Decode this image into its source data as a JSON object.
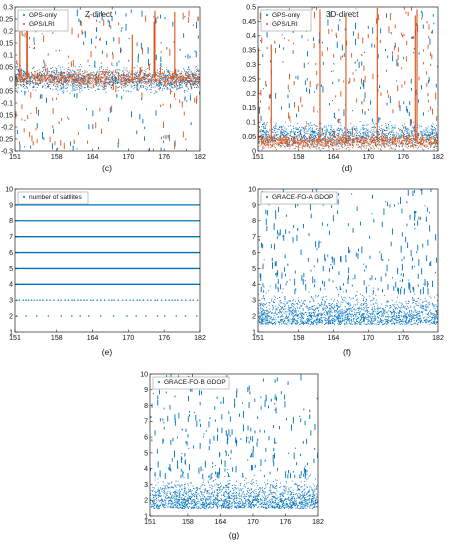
{
  "chart_data": [
    {
      "type": "scatter",
      "panel_label": "(c)",
      "annotation": "Z-direct",
      "xlim": [
        151,
        182
      ],
      "ylim": [
        -0.3,
        0.3
      ],
      "xticks": [
        "151",
        "158",
        "164",
        "170",
        "176",
        "182"
      ],
      "yticks": [
        "0.3",
        "0.25",
        "0.2",
        "0.15",
        "0.1",
        "0.05",
        "0",
        "-0.05",
        "-0.1",
        "-0.15",
        "-0.2",
        "-0.25",
        "-0.3"
      ],
      "legend": "top-left",
      "series": [
        {
          "name": "GPS-only",
          "color": "#0072BD",
          "approx_range": [
            -0.05,
            0.05
          ],
          "spikes_to": [
            -0.3,
            0.3
          ]
        },
        {
          "name": "GPS/LRI",
          "color": "#D95319",
          "approx_range": [
            -0.03,
            0.04
          ],
          "spikes_to": [
            -0.3,
            0.3
          ]
        }
      ]
    },
    {
      "type": "scatter",
      "panel_label": "(d)",
      "annotation": "3D-direct",
      "xlim": [
        151,
        182
      ],
      "ylim": [
        0,
        0.5
      ],
      "xticks": [
        "151",
        "158",
        "164",
        "170",
        "176",
        "182"
      ],
      "yticks": [
        "0.5",
        "0.45",
        "0.4",
        "0.35",
        "0.3",
        "0.25",
        "0.2",
        "0.15",
        "0.1",
        "0.05",
        "0"
      ],
      "legend": "top-left",
      "series": [
        {
          "name": "GPS-only",
          "color": "#0072BD",
          "approx_range": [
            0.01,
            0.1
          ],
          "spikes_to": 0.5
        },
        {
          "name": "GPS/LRI",
          "color": "#D95319",
          "approx_range": [
            0.01,
            0.06
          ],
          "spikes_to": 0.5
        }
      ]
    },
    {
      "type": "scatter",
      "panel_label": "(e)",
      "xlim": [
        151,
        182
      ],
      "ylim": [
        1,
        10
      ],
      "xticks": [
        "151",
        "158",
        "164",
        "170",
        "176",
        "182"
      ],
      "yticks": [
        "10",
        "9",
        "8",
        "7",
        "6",
        "5",
        "4",
        "3",
        "2",
        "1"
      ],
      "legend": "top-left",
      "series": [
        {
          "name": "number of satllites",
          "color": "#0072BD",
          "levels": [
            2,
            3,
            4,
            5,
            6,
            7,
            8,
            9
          ]
        }
      ]
    },
    {
      "type": "scatter",
      "panel_label": "(f)",
      "xlim": [
        151,
        182
      ],
      "ylim": [
        1,
        10
      ],
      "xticks": [
        "151",
        "158",
        "164",
        "170",
        "176",
        "182"
      ],
      "yticks": [
        "10",
        "9",
        "8",
        "7",
        "6",
        "5",
        "4",
        "3",
        "2",
        "1"
      ],
      "legend": "top-left",
      "series": [
        {
          "name": "GRACE-FO-A GDOP",
          "color": "#0072BD",
          "approx_range": [
            1.5,
            3.5
          ],
          "spikes_to": 10
        }
      ]
    },
    {
      "type": "scatter",
      "panel_label": "(g)",
      "xlim": [
        151,
        182
      ],
      "ylim": [
        1,
        10
      ],
      "xticks": [
        "151",
        "158",
        "164",
        "170",
        "176",
        "182"
      ],
      "yticks": [
        "10",
        "9",
        "8",
        "7",
        "6",
        "5",
        "4",
        "3",
        "2",
        "1"
      ],
      "legend": "top-left",
      "series": [
        {
          "name": "GRACE-FO-B GDOP",
          "color": "#0072BD",
          "approx_range": [
            1.5,
            3.5
          ],
          "spikes_to": 10
        }
      ]
    }
  ]
}
